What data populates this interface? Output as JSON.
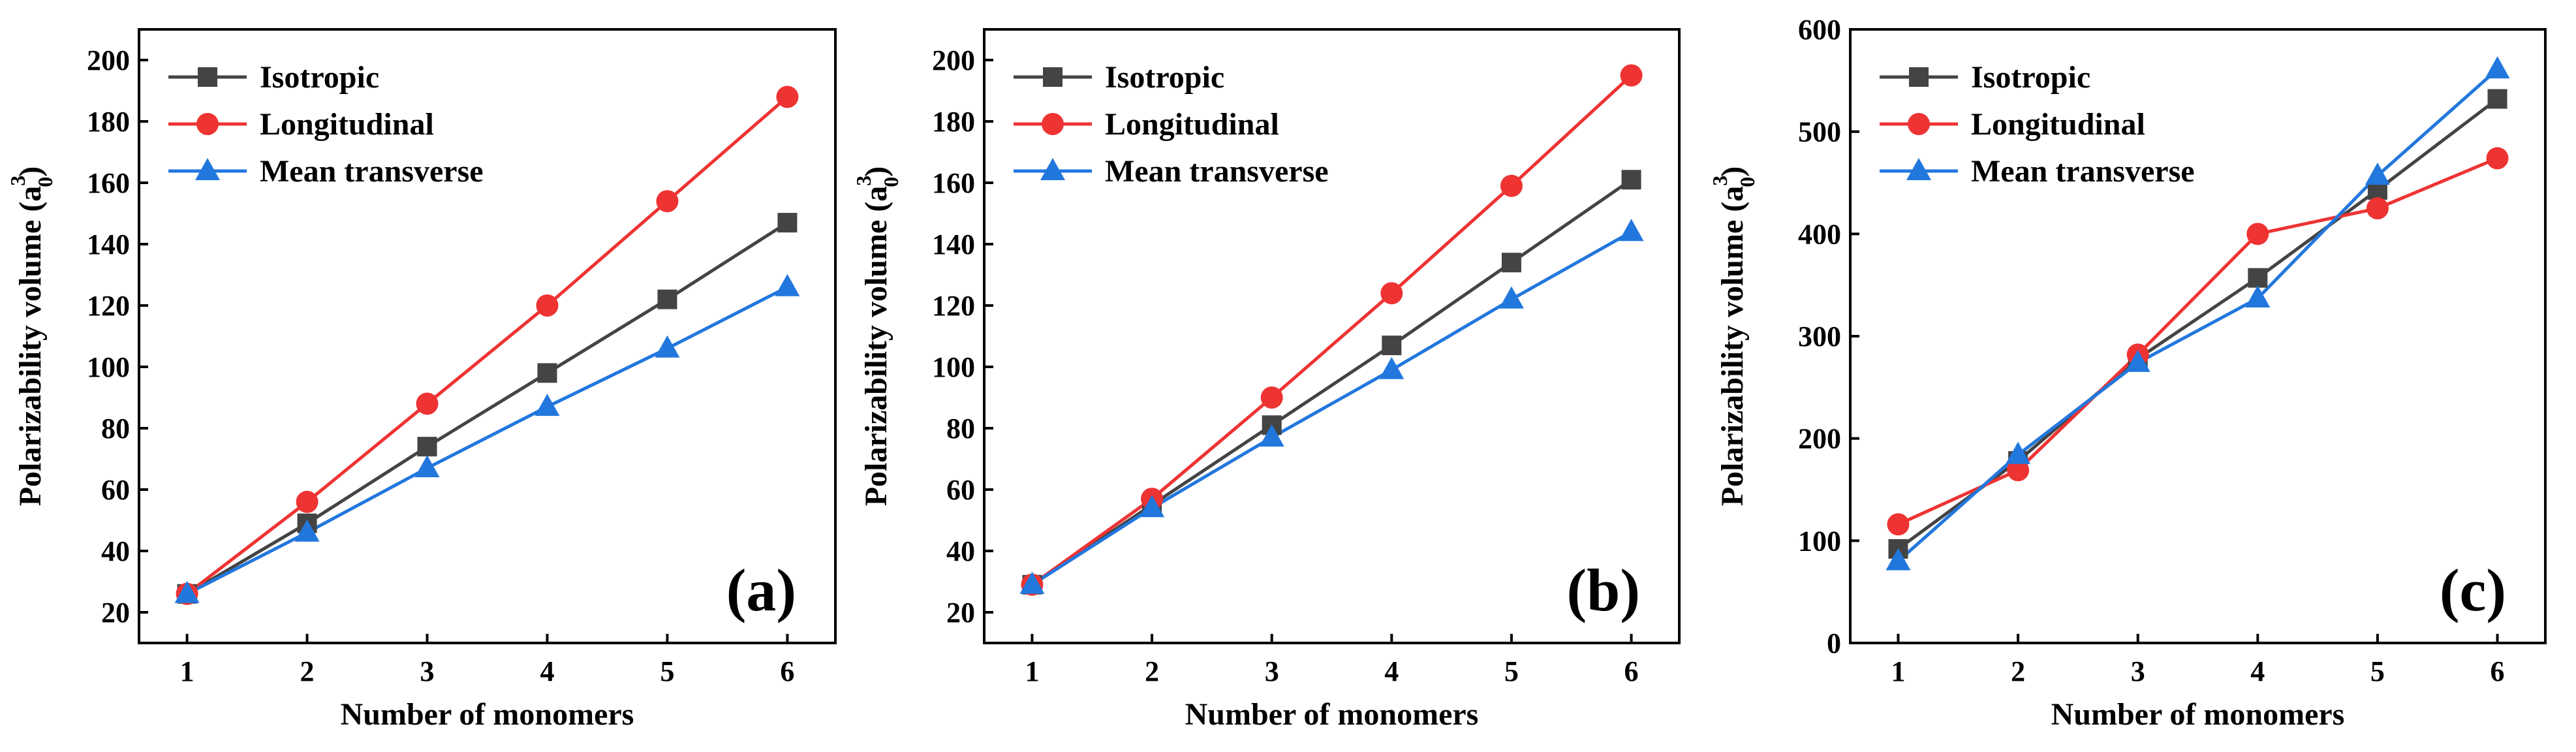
{
  "chart_data": [
    {
      "type": "line",
      "panel_label": "(a)",
      "xlabel": "Number of monomers",
      "ylabel_main": "Polarizability volume (a",
      "ylabel_base": "0",
      "ylabel_exp": "3",
      "ylabel_close": ")",
      "x": [
        1,
        2,
        3,
        4,
        5,
        6
      ],
      "x_ticks": [
        "1",
        "2",
        "3",
        "4",
        "5",
        "6"
      ],
      "ylim": [
        10,
        210
      ],
      "y_ticks": [
        20,
        40,
        60,
        80,
        100,
        120,
        140,
        160,
        180,
        200
      ],
      "legend_position": "top-left",
      "series": [
        {
          "name": "Isotropic",
          "marker": "square",
          "color": "#444444",
          "values": [
            26,
            49,
            74,
            98,
            122,
            147
          ]
        },
        {
          "name": "Longitudinal",
          "marker": "circle",
          "color": "#ee3333",
          "values": [
            26,
            56,
            88,
            120,
            154,
            188
          ]
        },
        {
          "name": "Mean transverse",
          "marker": "triangle",
          "color": "#2277dd",
          "values": [
            26,
            46,
            67,
            87,
            106,
            126
          ]
        }
      ]
    },
    {
      "type": "line",
      "panel_label": "(b)",
      "xlabel": "Number of monomers",
      "ylabel_main": "Polarizability volume (a",
      "ylabel_base": "0",
      "ylabel_exp": "3",
      "ylabel_close": ")",
      "x": [
        1,
        2,
        3,
        4,
        5,
        6
      ],
      "x_ticks": [
        "1",
        "2",
        "3",
        "4",
        "5",
        "6"
      ],
      "ylim": [
        10,
        210
      ],
      "y_ticks": [
        20,
        40,
        60,
        80,
        100,
        120,
        140,
        160,
        180,
        200
      ],
      "legend_position": "top-left",
      "series": [
        {
          "name": "Isotropic",
          "marker": "square",
          "color": "#444444",
          "values": [
            29,
            55,
            81,
            107,
            134,
            161
          ]
        },
        {
          "name": "Longitudinal",
          "marker": "circle",
          "color": "#ee3333",
          "values": [
            29,
            57,
            90,
            124,
            159,
            195
          ]
        },
        {
          "name": "Mean transverse",
          "marker": "triangle",
          "color": "#2277dd",
          "values": [
            29,
            54,
            77,
            99,
            122,
            144
          ]
        }
      ]
    },
    {
      "type": "line",
      "panel_label": "(c)",
      "xlabel": "Number of monomers",
      "ylabel_main": "Polarizability volume (a",
      "ylabel_base": "0",
      "ylabel_exp": "3",
      "ylabel_close": ")",
      "x": [
        1,
        2,
        3,
        4,
        5,
        6
      ],
      "x_ticks": [
        "1",
        "2",
        "3",
        "4",
        "5",
        "6"
      ],
      "ylim": [
        0,
        600
      ],
      "y_ticks": [
        0,
        100,
        200,
        300,
        400,
        500,
        600
      ],
      "legend_position": "top-left",
      "series": [
        {
          "name": "Isotropic",
          "marker": "square",
          "color": "#444444",
          "values": [
            92,
            178,
            278,
            357,
            443,
            532
          ]
        },
        {
          "name": "Longitudinal",
          "marker": "circle",
          "color": "#ee3333",
          "values": [
            116,
            169,
            282,
            400,
            425,
            474
          ]
        },
        {
          "name": "Mean transverse",
          "marker": "triangle",
          "color": "#2277dd",
          "values": [
            80,
            184,
            274,
            337,
            457,
            561
          ]
        }
      ]
    }
  ]
}
